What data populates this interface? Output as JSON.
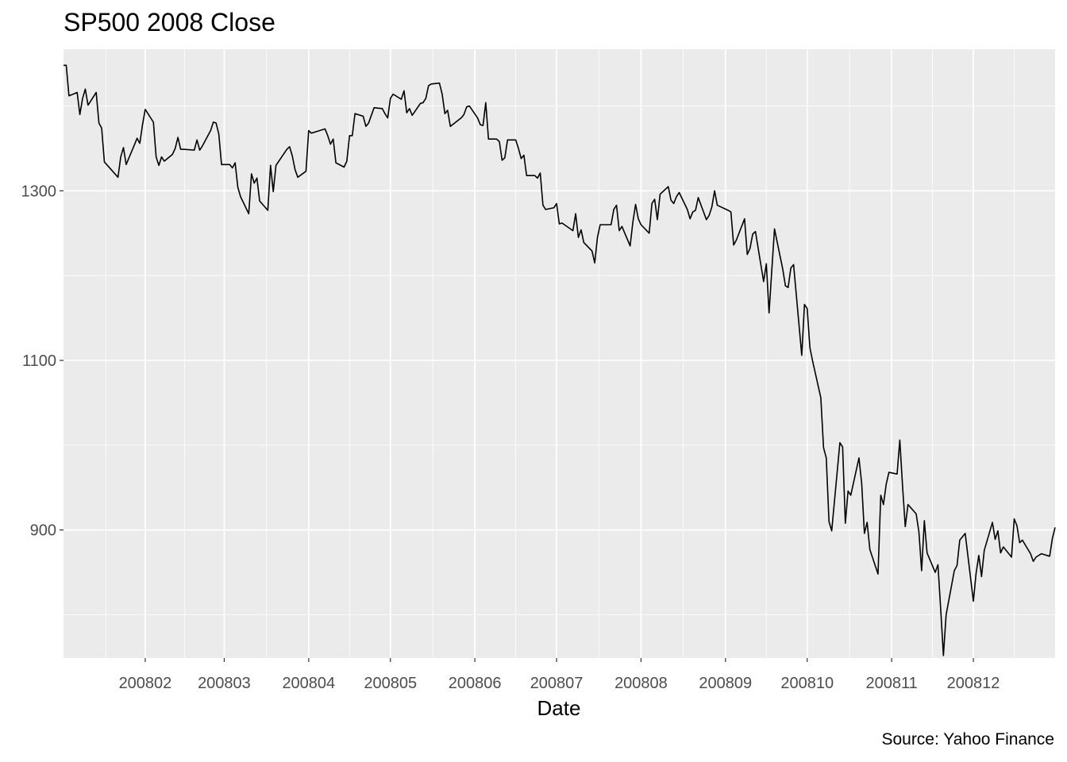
{
  "chart_data": {
    "type": "line",
    "title": "SP500 2008 Close",
    "caption": "Source: Yahoo Finance",
    "xlabel": "Date",
    "ylabel": "",
    "x_ticks": [
      {
        "date": "2008-02-01",
        "label": "200802"
      },
      {
        "date": "2008-03-01",
        "label": "200803"
      },
      {
        "date": "2008-04-01",
        "label": "200804"
      },
      {
        "date": "2008-05-01",
        "label": "200805"
      },
      {
        "date": "2008-06-01",
        "label": "200806"
      },
      {
        "date": "2008-07-01",
        "label": "200807"
      },
      {
        "date": "2008-08-01",
        "label": "200808"
      },
      {
        "date": "2008-09-01",
        "label": "200809"
      },
      {
        "date": "2008-10-01",
        "label": "200810"
      },
      {
        "date": "2008-11-01",
        "label": "200811"
      },
      {
        "date": "2008-12-01",
        "label": "200812"
      }
    ],
    "y_ticks": [
      {
        "value": 900,
        "label": "900"
      },
      {
        "value": 1100,
        "label": "1100"
      },
      {
        "value": 1300,
        "label": "1300"
      }
    ],
    "xlim": [
      "2008-01-02",
      "2008-12-31"
    ],
    "ylim": [
      749,
      1467
    ],
    "grid": true,
    "series": [
      {
        "color": "#000000",
        "points": [
          [
            "2008-01-02",
            1448
          ],
          [
            "2008-01-03",
            1448
          ],
          [
            "2008-01-04",
            1412
          ],
          [
            "2008-01-07",
            1416
          ],
          [
            "2008-01-08",
            1390
          ],
          [
            "2008-01-09",
            1409
          ],
          [
            "2008-01-10",
            1420
          ],
          [
            "2008-01-11",
            1401
          ],
          [
            "2008-01-14",
            1416
          ],
          [
            "2008-01-15",
            1380
          ],
          [
            "2008-01-16",
            1374
          ],
          [
            "2008-01-17",
            1334
          ],
          [
            "2008-01-22",
            1316
          ],
          [
            "2008-01-23",
            1340
          ],
          [
            "2008-01-24",
            1351
          ],
          [
            "2008-01-25",
            1331
          ],
          [
            "2008-01-28",
            1354
          ],
          [
            "2008-01-29",
            1362
          ],
          [
            "2008-01-30",
            1356
          ],
          [
            "2008-01-31",
            1378
          ],
          [
            "2008-02-01",
            1396
          ],
          [
            "2008-02-04",
            1381
          ],
          [
            "2008-02-05",
            1340
          ],
          [
            "2008-02-06",
            1330
          ],
          [
            "2008-02-07",
            1340
          ],
          [
            "2008-02-08",
            1335
          ],
          [
            "2008-02-11",
            1343
          ],
          [
            "2008-02-12",
            1350
          ],
          [
            "2008-02-13",
            1363
          ],
          [
            "2008-02-14",
            1349
          ],
          [
            "2008-02-15",
            1349
          ],
          [
            "2008-02-19",
            1348
          ],
          [
            "2008-02-20",
            1360
          ],
          [
            "2008-02-21",
            1348
          ],
          [
            "2008-02-22",
            1353
          ],
          [
            "2008-02-25",
            1371
          ],
          [
            "2008-02-26",
            1381
          ],
          [
            "2008-02-27",
            1380
          ],
          [
            "2008-02-28",
            1367
          ],
          [
            "2008-02-29",
            1331
          ],
          [
            "2008-03-03",
            1331
          ],
          [
            "2008-03-04",
            1327
          ],
          [
            "2008-03-05",
            1333
          ],
          [
            "2008-03-06",
            1304
          ],
          [
            "2008-03-07",
            1293
          ],
          [
            "2008-03-10",
            1273
          ],
          [
            "2008-03-11",
            1320
          ],
          [
            "2008-03-12",
            1309
          ],
          [
            "2008-03-13",
            1315
          ],
          [
            "2008-03-14",
            1288
          ],
          [
            "2008-03-17",
            1277
          ],
          [
            "2008-03-18",
            1330
          ],
          [
            "2008-03-19",
            1299
          ],
          [
            "2008-03-20",
            1330
          ],
          [
            "2008-03-24",
            1349
          ],
          [
            "2008-03-25",
            1352
          ],
          [
            "2008-03-26",
            1341
          ],
          [
            "2008-03-27",
            1325
          ],
          [
            "2008-03-28",
            1316
          ],
          [
            "2008-03-31",
            1323
          ],
          [
            "2008-04-01",
            1371
          ],
          [
            "2008-04-02",
            1368
          ],
          [
            "2008-04-03",
            1369
          ],
          [
            "2008-04-04",
            1370
          ],
          [
            "2008-04-07",
            1373
          ],
          [
            "2008-04-08",
            1365
          ],
          [
            "2008-04-09",
            1355
          ],
          [
            "2008-04-10",
            1361
          ],
          [
            "2008-04-11",
            1333
          ],
          [
            "2008-04-14",
            1328
          ],
          [
            "2008-04-15",
            1335
          ],
          [
            "2008-04-16",
            1365
          ],
          [
            "2008-04-17",
            1365
          ],
          [
            "2008-04-18",
            1391
          ],
          [
            "2008-04-21",
            1388
          ],
          [
            "2008-04-22",
            1376
          ],
          [
            "2008-04-23",
            1380
          ],
          [
            "2008-04-24",
            1389
          ],
          [
            "2008-04-25",
            1398
          ],
          [
            "2008-04-28",
            1397
          ],
          [
            "2008-04-29",
            1391
          ],
          [
            "2008-04-30",
            1386
          ],
          [
            "2008-05-01",
            1409
          ],
          [
            "2008-05-02",
            1414
          ],
          [
            "2008-05-05",
            1408
          ],
          [
            "2008-05-06",
            1418
          ],
          [
            "2008-05-07",
            1392
          ],
          [
            "2008-05-08",
            1397
          ],
          [
            "2008-05-09",
            1389
          ],
          [
            "2008-05-12",
            1403
          ],
          [
            "2008-05-13",
            1404
          ],
          [
            "2008-05-14",
            1409
          ],
          [
            "2008-05-15",
            1424
          ],
          [
            "2008-05-16",
            1426
          ],
          [
            "2008-05-19",
            1427
          ],
          [
            "2008-05-20",
            1414
          ],
          [
            "2008-05-21",
            1391
          ],
          [
            "2008-05-22",
            1395
          ],
          [
            "2008-05-23",
            1376
          ],
          [
            "2008-05-27",
            1386
          ],
          [
            "2008-05-28",
            1390
          ],
          [
            "2008-05-29",
            1399
          ],
          [
            "2008-05-30",
            1400
          ],
          [
            "2008-06-02",
            1386
          ],
          [
            "2008-06-03",
            1378
          ],
          [
            "2008-06-04",
            1377
          ],
          [
            "2008-06-05",
            1404
          ],
          [
            "2008-06-06",
            1361
          ],
          [
            "2008-06-09",
            1361
          ],
          [
            "2008-06-10",
            1358
          ],
          [
            "2008-06-11",
            1336
          ],
          [
            "2008-06-12",
            1339
          ],
          [
            "2008-06-13",
            1360
          ],
          [
            "2008-06-16",
            1360
          ],
          [
            "2008-06-17",
            1350
          ],
          [
            "2008-06-18",
            1338
          ],
          [
            "2008-06-19",
            1342
          ],
          [
            "2008-06-20",
            1318
          ],
          [
            "2008-06-23",
            1318
          ],
          [
            "2008-06-24",
            1315
          ],
          [
            "2008-06-25",
            1321
          ],
          [
            "2008-06-26",
            1283
          ],
          [
            "2008-06-27",
            1278
          ],
          [
            "2008-06-30",
            1280
          ],
          [
            "2008-07-01",
            1285
          ],
          [
            "2008-07-02",
            1261
          ],
          [
            "2008-07-03",
            1262
          ],
          [
            "2008-07-07",
            1253
          ],
          [
            "2008-07-08",
            1273
          ],
          [
            "2008-07-09",
            1245
          ],
          [
            "2008-07-10",
            1254
          ],
          [
            "2008-07-11",
            1239
          ],
          [
            "2008-07-14",
            1229
          ],
          [
            "2008-07-15",
            1215
          ],
          [
            "2008-07-16",
            1245
          ],
          [
            "2008-07-17",
            1260
          ],
          [
            "2008-07-18",
            1260
          ],
          [
            "2008-07-21",
            1260
          ],
          [
            "2008-07-22",
            1278
          ],
          [
            "2008-07-23",
            1283
          ],
          [
            "2008-07-24",
            1253
          ],
          [
            "2008-07-25",
            1258
          ],
          [
            "2008-07-28",
            1235
          ],
          [
            "2008-07-29",
            1263
          ],
          [
            "2008-07-30",
            1284
          ],
          [
            "2008-07-31",
            1267
          ],
          [
            "2008-08-01",
            1260
          ],
          [
            "2008-08-04",
            1250
          ],
          [
            "2008-08-05",
            1285
          ],
          [
            "2008-08-06",
            1290
          ],
          [
            "2008-08-07",
            1266
          ],
          [
            "2008-08-08",
            1296
          ],
          [
            "2008-08-11",
            1305
          ],
          [
            "2008-08-12",
            1289
          ],
          [
            "2008-08-13",
            1285
          ],
          [
            "2008-08-14",
            1293
          ],
          [
            "2008-08-15",
            1298
          ],
          [
            "2008-08-18",
            1278
          ],
          [
            "2008-08-19",
            1267
          ],
          [
            "2008-08-20",
            1275
          ],
          [
            "2008-08-21",
            1277
          ],
          [
            "2008-08-22",
            1292
          ],
          [
            "2008-08-25",
            1266
          ],
          [
            "2008-08-26",
            1271
          ],
          [
            "2008-08-27",
            1281
          ],
          [
            "2008-08-28",
            1300
          ],
          [
            "2008-08-29",
            1283
          ],
          [
            "2008-09-02",
            1277
          ],
          [
            "2008-09-03",
            1275
          ],
          [
            "2008-09-04",
            1236
          ],
          [
            "2008-09-05",
            1242
          ],
          [
            "2008-09-08",
            1267
          ],
          [
            "2008-09-09",
            1225
          ],
          [
            "2008-09-10",
            1232
          ],
          [
            "2008-09-11",
            1249
          ],
          [
            "2008-09-12",
            1252
          ],
          [
            "2008-09-15",
            1193
          ],
          [
            "2008-09-16",
            1214
          ],
          [
            "2008-09-17",
            1156
          ],
          [
            "2008-09-18",
            1206
          ],
          [
            "2008-09-19",
            1255
          ],
          [
            "2008-09-22",
            1208
          ],
          [
            "2008-09-23",
            1188
          ],
          [
            "2008-09-24",
            1186
          ],
          [
            "2008-09-25",
            1209
          ],
          [
            "2008-09-26",
            1213
          ],
          [
            "2008-09-29",
            1106
          ],
          [
            "2008-09-30",
            1166
          ],
          [
            "2008-10-01",
            1161
          ],
          [
            "2008-10-02",
            1115
          ],
          [
            "2008-10-03",
            1099
          ],
          [
            "2008-10-06",
            1056
          ],
          [
            "2008-10-07",
            997
          ],
          [
            "2008-10-08",
            985
          ],
          [
            "2008-10-09",
            910
          ],
          [
            "2008-10-10",
            899
          ],
          [
            "2008-10-13",
            1003
          ],
          [
            "2008-10-14",
            998
          ],
          [
            "2008-10-15",
            908
          ],
          [
            "2008-10-16",
            946
          ],
          [
            "2008-10-17",
            941
          ],
          [
            "2008-10-20",
            985
          ],
          [
            "2008-10-21",
            955
          ],
          [
            "2008-10-22",
            896
          ],
          [
            "2008-10-23",
            909
          ],
          [
            "2008-10-24",
            877
          ],
          [
            "2008-10-27",
            848
          ],
          [
            "2008-10-28",
            941
          ],
          [
            "2008-10-29",
            930
          ],
          [
            "2008-10-30",
            954
          ],
          [
            "2008-10-31",
            968
          ],
          [
            "2008-11-03",
            966
          ],
          [
            "2008-11-04",
            1006
          ],
          [
            "2008-11-05",
            952
          ],
          [
            "2008-11-06",
            904
          ],
          [
            "2008-11-07",
            930
          ],
          [
            "2008-11-10",
            919
          ],
          [
            "2008-11-11",
            898
          ],
          [
            "2008-11-12",
            852
          ],
          [
            "2008-11-13",
            911
          ],
          [
            "2008-11-14",
            873
          ],
          [
            "2008-11-17",
            850
          ],
          [
            "2008-11-18",
            859
          ],
          [
            "2008-11-19",
            807
          ],
          [
            "2008-11-20",
            752
          ],
          [
            "2008-11-21",
            800
          ],
          [
            "2008-11-24",
            852
          ],
          [
            "2008-11-25",
            858
          ],
          [
            "2008-11-26",
            888
          ],
          [
            "2008-11-28",
            896
          ],
          [
            "2008-12-01",
            816
          ],
          [
            "2008-12-02",
            849
          ],
          [
            "2008-12-03",
            870
          ],
          [
            "2008-12-04",
            845
          ],
          [
            "2008-12-05",
            876
          ],
          [
            "2008-12-08",
            909
          ],
          [
            "2008-12-09",
            889
          ],
          [
            "2008-12-10",
            899
          ],
          [
            "2008-12-11",
            873
          ],
          [
            "2008-12-12",
            880
          ],
          [
            "2008-12-15",
            868
          ],
          [
            "2008-12-16",
            913
          ],
          [
            "2008-12-17",
            905
          ],
          [
            "2008-12-18",
            885
          ],
          [
            "2008-12-19",
            888
          ],
          [
            "2008-12-22",
            872
          ],
          [
            "2008-12-23",
            863
          ],
          [
            "2008-12-24",
            868
          ],
          [
            "2008-12-26",
            872
          ],
          [
            "2008-12-29",
            869
          ],
          [
            "2008-12-30",
            890
          ],
          [
            "2008-12-31",
            903
          ]
        ]
      }
    ]
  }
}
